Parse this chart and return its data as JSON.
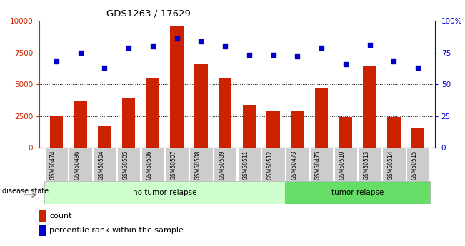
{
  "title": "GDS1263 / 17629",
  "categories": [
    "GSM50474",
    "GSM50496",
    "GSM50504",
    "GSM50505",
    "GSM50506",
    "GSM50507",
    "GSM50508",
    "GSM50509",
    "GSM50511",
    "GSM50512",
    "GSM50473",
    "GSM50475",
    "GSM50510",
    "GSM50513",
    "GSM50514",
    "GSM50515"
  ],
  "counts": [
    2500,
    3700,
    1700,
    3900,
    5500,
    9600,
    6600,
    5500,
    3400,
    2900,
    2900,
    4700,
    2400,
    6500,
    2400,
    1600
  ],
  "percentiles": [
    68,
    75,
    63,
    79,
    80,
    86,
    84,
    80,
    73,
    73,
    72,
    79,
    66,
    81,
    68,
    63
  ],
  "bar_color": "#cc2200",
  "dot_color": "#0000cc",
  "no_tumor_count": 10,
  "tumor_count": 6,
  "no_tumor_label": "no tumor relapse",
  "tumor_label": "tumor relapse",
  "disease_state_label": "disease state",
  "legend_count_label": "count",
  "legend_percentile_label": "percentile rank within the sample",
  "ylim_left": [
    0,
    10000
  ],
  "ylim_right": [
    0,
    100
  ],
  "yticks_left": [
    0,
    2500,
    5000,
    7500,
    10000
  ],
  "ytick_labels_left": [
    "0",
    "2500",
    "5000",
    "7500",
    "10000"
  ],
  "yticks_right": [
    0,
    25,
    50,
    75,
    100
  ],
  "ytick_labels_right": [
    "0",
    "25",
    "50",
    "75",
    "100%"
  ],
  "grid_lines": [
    2500,
    5000,
    7500
  ],
  "no_tumor_color": "#ccffcc",
  "tumor_color": "#66dd66",
  "xticklabel_bg": "#cccccc",
  "figsize": [
    6.51,
    3.45
  ],
  "dpi": 100
}
